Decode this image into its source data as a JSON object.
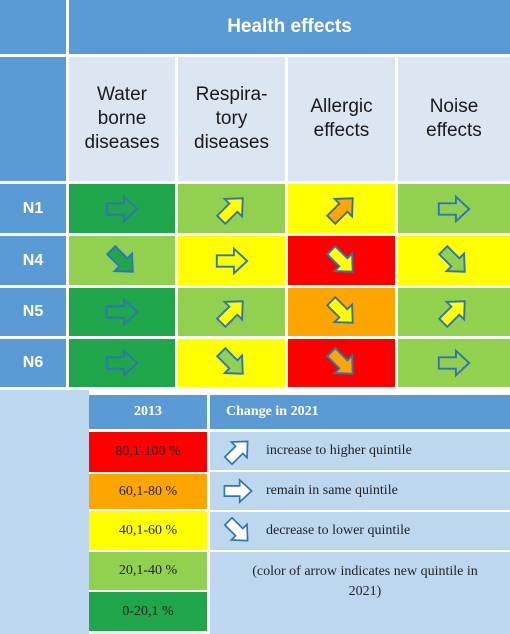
{
  "title": "Health effects",
  "columns": [
    {
      "key": "water",
      "label": "Water\nborne\ndiseases"
    },
    {
      "key": "resp",
      "label": "Respira-\ntory\ndiseases"
    },
    {
      "key": "allergic",
      "label": "Allergic\neffects"
    },
    {
      "key": "noise",
      "label": "Noise\neffects"
    }
  ],
  "rows": [
    {
      "label": "N1",
      "cells": [
        {
          "bg": "#1fa64a",
          "arrow": "right",
          "fill": "#1fa64a"
        },
        {
          "bg": "#92d050",
          "arrow": "up",
          "fill": "#ffff00"
        },
        {
          "bg": "#ffff00",
          "arrow": "up",
          "fill": "#ffa500"
        },
        {
          "bg": "#92d050",
          "arrow": "right",
          "fill": "#92d050"
        }
      ]
    },
    {
      "label": "N4",
      "cells": [
        {
          "bg": "#92d050",
          "arrow": "down",
          "fill": "#1fa64a"
        },
        {
          "bg": "#ffff00",
          "arrow": "right",
          "fill": "#ffff00"
        },
        {
          "bg": "#ff0000",
          "arrow": "down",
          "fill": "#ffff00"
        },
        {
          "bg": "#ffff00",
          "arrow": "down",
          "fill": "#92d050"
        }
      ]
    },
    {
      "label": "N5",
      "cells": [
        {
          "bg": "#1fa64a",
          "arrow": "right",
          "fill": "#1fa64a"
        },
        {
          "bg": "#92d050",
          "arrow": "up",
          "fill": "#ffff00"
        },
        {
          "bg": "#ffa500",
          "arrow": "down",
          "fill": "#ffff00"
        },
        {
          "bg": "#92d050",
          "arrow": "up",
          "fill": "#ffff00"
        }
      ]
    },
    {
      "label": "N6",
      "cells": [
        {
          "bg": "#1fa64a",
          "arrow": "right",
          "fill": "#1fa64a"
        },
        {
          "bg": "#ffff00",
          "arrow": "down",
          "fill": "#92d050"
        },
        {
          "bg": "#ff0000",
          "arrow": "down",
          "fill": "#ffa500"
        },
        {
          "bg": "#92d050",
          "arrow": "right",
          "fill": "#92d050"
        }
      ]
    }
  ],
  "legend": {
    "col1_header": "2013",
    "col2_header": "Change in 2021",
    "ranges": [
      {
        "label": "80,1-100 %",
        "color": "#ff0000"
      },
      {
        "label": "60,1-80 %",
        "color": "#ffa500"
      },
      {
        "label": "40,1-60 %",
        "color": "#ffff00"
      },
      {
        "label": "20,1-40 %",
        "color": "#92d050"
      },
      {
        "label": "0-20,1 %",
        "color": "#1fa64a"
      }
    ],
    "changes": [
      {
        "arrow": "up",
        "label": "increase to higher quintile"
      },
      {
        "arrow": "right",
        "label": "remain in same quintile"
      },
      {
        "arrow": "down",
        "label": "decrease to lower quintile"
      }
    ],
    "note": "(color of arrow indicates new quintile in 2021)"
  },
  "colors": {
    "header_blue": "#5b9bd5",
    "light_blue": "#dce6f2",
    "legend_blue": "#bdd7ee",
    "arrow_stroke": "#2e75b6"
  }
}
